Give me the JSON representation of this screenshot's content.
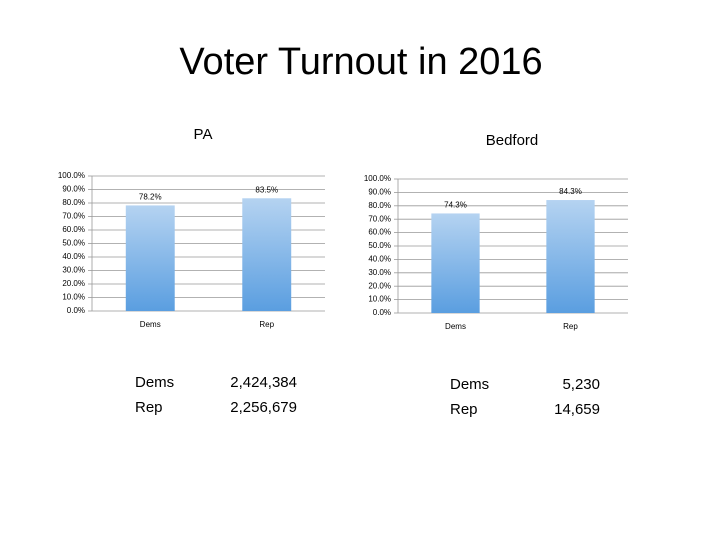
{
  "title": "Voter Turnout in 2016",
  "chart_data": [
    {
      "type": "bar",
      "title": "PA",
      "categories": [
        "Dems",
        "Rep"
      ],
      "values": [
        78.2,
        83.5
      ],
      "value_labels": [
        "78.2%",
        "83.5%"
      ],
      "ylim": [
        0,
        100
      ],
      "yticks": [
        {
          "value": 0,
          "label": "0.0%"
        },
        {
          "value": 10,
          "label": "10.0%"
        },
        {
          "value": 20,
          "label": "20.0%"
        },
        {
          "value": 30,
          "label": "30.0%"
        },
        {
          "value": 40,
          "label": "40.0%"
        },
        {
          "value": 50,
          "label": "50.0%"
        },
        {
          "value": 60,
          "label": "60.0%"
        },
        {
          "value": 70,
          "label": "70.0%"
        },
        {
          "value": 80,
          "label": "80.0%"
        },
        {
          "value": 90,
          "label": "90.0%"
        },
        {
          "value": 100,
          "label": "100.0%"
        }
      ],
      "grid": true,
      "color": "#5a9ee0"
    },
    {
      "type": "bar",
      "title": "Bedford",
      "categories": [
        "Dems",
        "Rep"
      ],
      "values": [
        74.3,
        84.3
      ],
      "value_labels": [
        "74.3%",
        "84.3%"
      ],
      "ylim": [
        0,
        100
      ],
      "yticks": [
        {
          "value": 0,
          "label": "0.0%"
        },
        {
          "value": 10,
          "label": "10.0%"
        },
        {
          "value": 20,
          "label": "20.0%"
        },
        {
          "value": 30,
          "label": "30.0%"
        },
        {
          "value": 40,
          "label": "40.0%"
        },
        {
          "value": 50,
          "label": "50.0%"
        },
        {
          "value": 60,
          "label": "60.0%"
        },
        {
          "value": 70,
          "label": "70.0%"
        },
        {
          "value": 80,
          "label": "80.0%"
        },
        {
          "value": 90,
          "label": "90.0%"
        },
        {
          "value": 100,
          "label": "100.0%"
        }
      ],
      "grid": true,
      "color": "#5a9ee0"
    }
  ],
  "tables": [
    {
      "rows": [
        [
          "Dems",
          "2,424,384"
        ],
        [
          "Rep",
          "2,256,679"
        ]
      ]
    },
    {
      "rows": [
        [
          "Dems",
          "5,230"
        ],
        [
          "Rep",
          "14,659"
        ]
      ]
    }
  ]
}
